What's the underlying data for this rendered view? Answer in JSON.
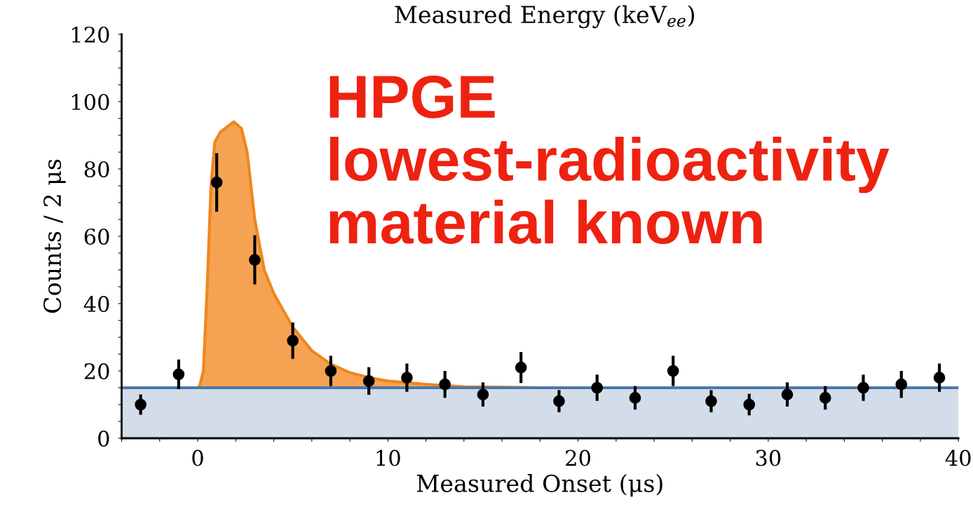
{
  "chart_data": {
    "type": "scatter",
    "x2label": "Measured Energy (keV$_{ee}$)",
    "xlabel": "Measured Onset (μs)",
    "ylabel": "Counts / 2 μs",
    "annotations": [
      "HPGE lowest-radioactivity material known"
    ],
    "xlim": [
      -4,
      40
    ],
    "xticks": [
      {
        "value": -4,
        "label": null
      },
      {
        "value": -2,
        "label": null
      },
      0,
      {
        "value": 2,
        "label": null
      },
      {
        "value": 4,
        "label": null
      },
      {
        "value": 6,
        "label": null
      },
      {
        "value": 8,
        "label": null
      },
      10,
      {
        "value": 12,
        "label": null
      },
      {
        "value": 14,
        "label": null
      },
      {
        "value": 16,
        "label": null
      },
      {
        "value": 18,
        "label": null
      },
      20,
      {
        "value": 22,
        "label": null
      },
      {
        "value": 24,
        "label": null
      },
      {
        "value": 26,
        "label": null
      },
      {
        "value": 28,
        "label": null
      },
      30,
      {
        "value": 32,
        "label": null
      },
      {
        "value": 34,
        "label": null
      },
      {
        "value": 36,
        "label": null
      },
      {
        "value": 38,
        "label": null
      },
      40
    ],
    "ylim": [
      0,
      120
    ],
    "yticks": [
      0,
      {
        "value": 5,
        "label": null
      },
      {
        "value": 10,
        "label": null
      },
      {
        "value": 15,
        "label": null
      },
      20,
      {
        "value": 25,
        "label": null
      },
      {
        "value": 30,
        "label": null
      },
      {
        "value": 35,
        "label": null
      },
      40,
      {
        "value": 45,
        "label": null
      },
      {
        "value": 50,
        "label": null
      },
      {
        "value": 55,
        "label": null
      },
      60,
      {
        "value": 65,
        "label": null
      },
      {
        "value": 70,
        "label": null
      },
      {
        "value": 75,
        "label": null
      },
      80,
      {
        "value": 85,
        "label": null
      },
      {
        "value": 90,
        "label": null
      },
      {
        "value": 95,
        "label": null
      },
      100,
      {
        "value": 105,
        "label": null
      },
      {
        "value": 110,
        "label": null
      },
      {
        "value": 115,
        "label": null
      },
      120
    ],
    "grid": false,
    "legend": false,
    "series": [
      {
        "type": "area",
        "color": "#f5a352",
        "x": [
          0,
          0.1,
          0.3,
          0.5,
          0.7,
          0.9,
          1.2,
          1.9,
          2.3,
          2.6,
          3.0,
          3.5,
          4,
          5,
          6,
          7,
          8,
          9,
          10,
          12,
          14,
          18,
          40
        ],
        "values": [
          15,
          15.5,
          20,
          45,
          75,
          88,
          91,
          94,
          92,
          85,
          65,
          50,
          43,
          33,
          26,
          22,
          19.5,
          18,
          17,
          16,
          15.3,
          15,
          15
        ]
      },
      {
        "type": "area",
        "color": "#d3dde9",
        "x": [
          -4,
          40
        ],
        "values": [
          15,
          15
        ]
      },
      {
        "color": "#000000",
        "marker": "circle",
        "x": [
          -3,
          -1,
          1,
          3,
          5,
          7,
          9,
          11,
          13,
          15,
          17,
          19,
          21,
          23,
          25,
          27,
          29,
          31,
          33,
          35,
          37,
          39
        ],
        "values": [
          10,
          19,
          76,
          53,
          29,
          20,
          17,
          18,
          16,
          13,
          21,
          11,
          15,
          12,
          20,
          11,
          10,
          13,
          12,
          15,
          16,
          18
        ],
        "errors": [
          3,
          4.4,
          8.7,
          7.3,
          5.4,
          4.5,
          4.1,
          4.2,
          4,
          3.6,
          4.6,
          3.3,
          3.9,
          3.5,
          4.5,
          3.3,
          3.2,
          3.6,
          3.5,
          3.9,
          4,
          4.2
        ]
      }
    ]
  }
}
